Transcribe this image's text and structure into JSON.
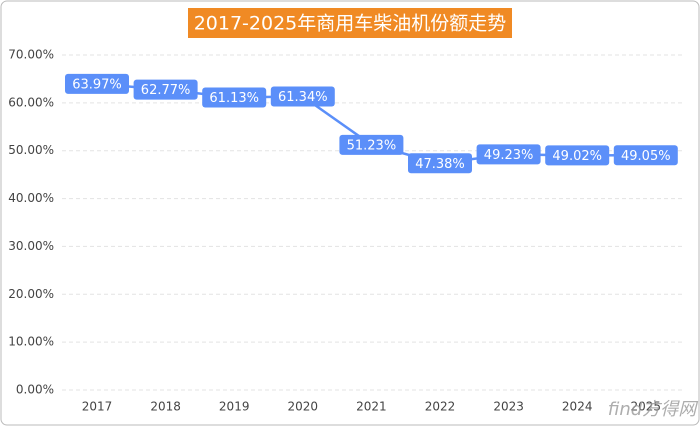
{
  "chart_data": {
    "type": "line",
    "title": "2017-2025年商用车柴油机份额走势",
    "categories": [
      "2017",
      "2018",
      "2019",
      "2020",
      "2021",
      "2022",
      "2023",
      "2024",
      "2025"
    ],
    "series": [
      {
        "name": "商用车柴油机份额",
        "color": "#5b8ff9",
        "values": [
          63.97,
          62.77,
          61.13,
          61.34,
          51.23,
          47.38,
          49.23,
          49.02,
          49.05
        ],
        "value_labels": [
          "63.97%",
          "62.77%",
          "61.13%",
          "61.34%",
          "51.23%",
          "47.38%",
          "49.23%",
          "49.02%",
          "49.05%"
        ]
      }
    ],
    "ylim": [
      0,
      70
    ],
    "yticks": [
      {
        "value": 0,
        "label": "0.00%"
      },
      {
        "value": 10,
        "label": "10.00%"
      },
      {
        "value": 20,
        "label": "20.00%"
      },
      {
        "value": 30,
        "label": "30.00%"
      },
      {
        "value": 40,
        "label": "40.00%"
      },
      {
        "value": 50,
        "label": "50.00%"
      },
      {
        "value": 60,
        "label": "60.00%"
      },
      {
        "value": 70,
        "label": "70.00%"
      }
    ],
    "grid": true,
    "title_color": "#f08a24",
    "watermark": "find方得网"
  }
}
